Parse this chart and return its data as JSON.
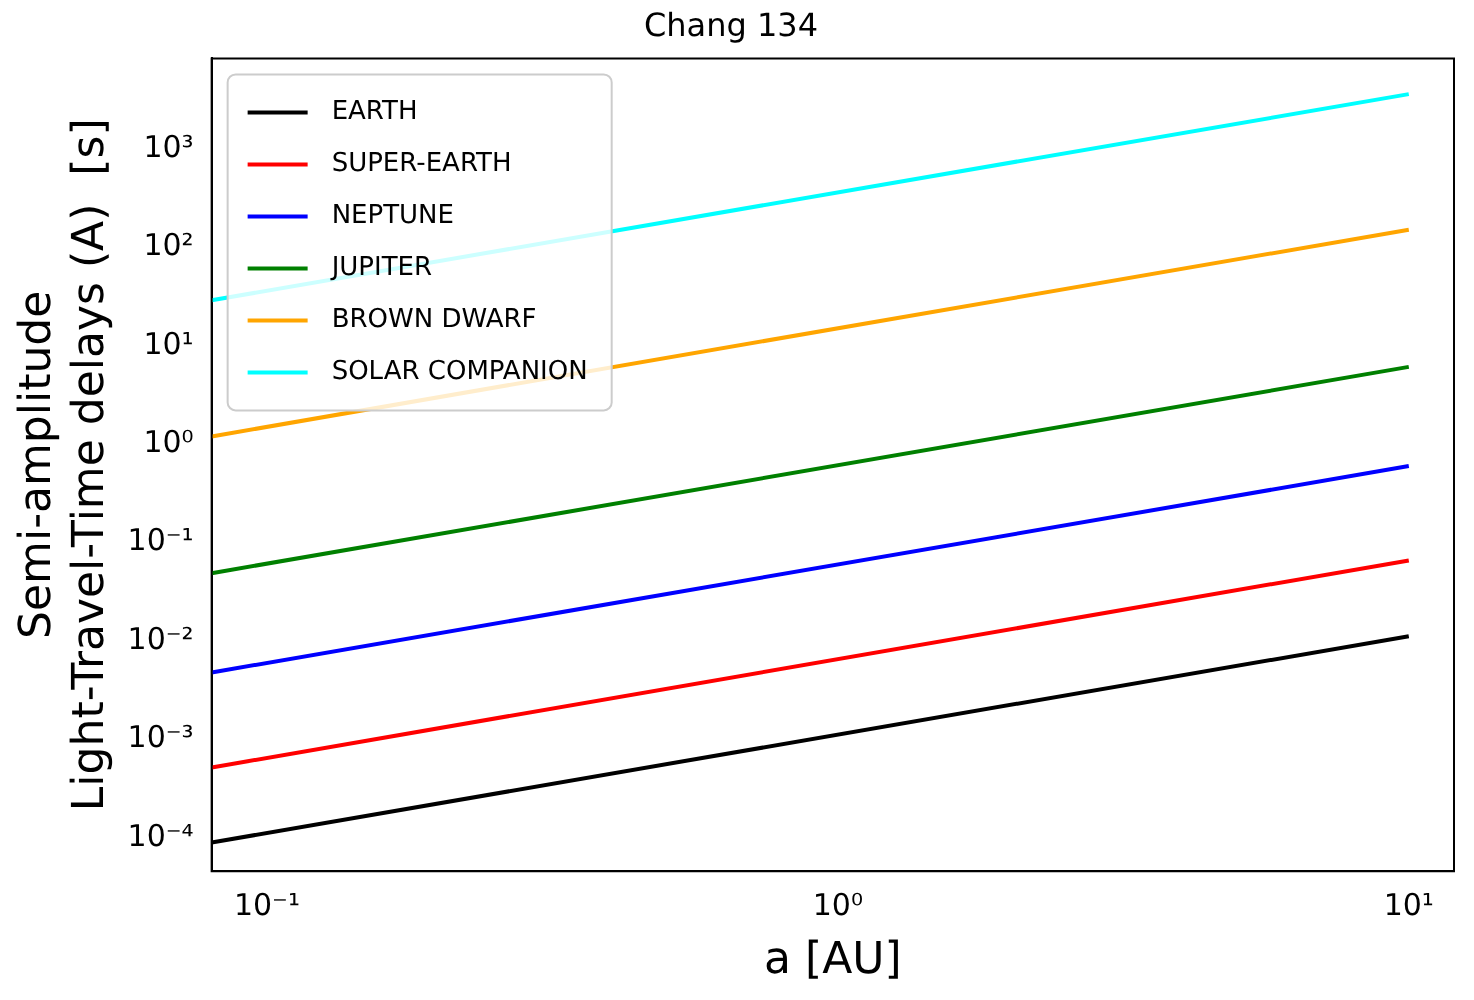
{
  "chart_data": {
    "type": "line",
    "title": "Chang 134",
    "xlabel": "a [AU]",
    "ylabel": "Semi-amplitude\nLight-Travel-Time delays (A)  [s]",
    "log": "xy",
    "xlim": [
      0.08,
      12
    ],
    "ylim": [
      4.6e-05,
      8300
    ],
    "xticks": [
      {
        "value": 0.1,
        "label": "10⁻¹"
      },
      {
        "value": 1,
        "label": "10⁰"
      },
      {
        "value": 10,
        "label": "10¹"
      }
    ],
    "yticks": [
      {
        "value": 0.0001,
        "label": "10⁻⁴"
      },
      {
        "value": 0.001,
        "label": "10⁻³"
      },
      {
        "value": 0.01,
        "label": "10⁻²"
      },
      {
        "value": 0.1,
        "label": "10⁻¹"
      },
      {
        "value": 1,
        "label": "10⁰"
      },
      {
        "value": 10,
        "label": "10¹"
      },
      {
        "value": 100,
        "label": "10²"
      },
      {
        "value": 1000,
        "label": "10³"
      }
    ],
    "grid": false,
    "legend": "top left",
    "marker": "none",
    "line_style": "solid",
    "x": [
      0.08,
      10
    ],
    "series": [
      {
        "name": "EARTH",
        "color": "#000000",
        "values": [
          9e-05,
          0.0112
        ]
      },
      {
        "name": "SUPER-EARTH",
        "color": "#ff0000",
        "values": [
          0.00052,
          0.066
        ]
      },
      {
        "name": "NEPTUNE",
        "color": "#0000ff",
        "values": [
          0.0048,
          0.6
        ]
      },
      {
        "name": "JUPITER",
        "color": "#008000",
        "values": [
          0.049,
          6.1
        ]
      },
      {
        "name": "BROWN DWARF",
        "color": "#ffa500",
        "values": [
          1.2,
          151
        ]
      },
      {
        "name": "SOLAR COMPANION",
        "color": "#00ffff",
        "values": [
          29,
          3600
        ]
      }
    ]
  }
}
